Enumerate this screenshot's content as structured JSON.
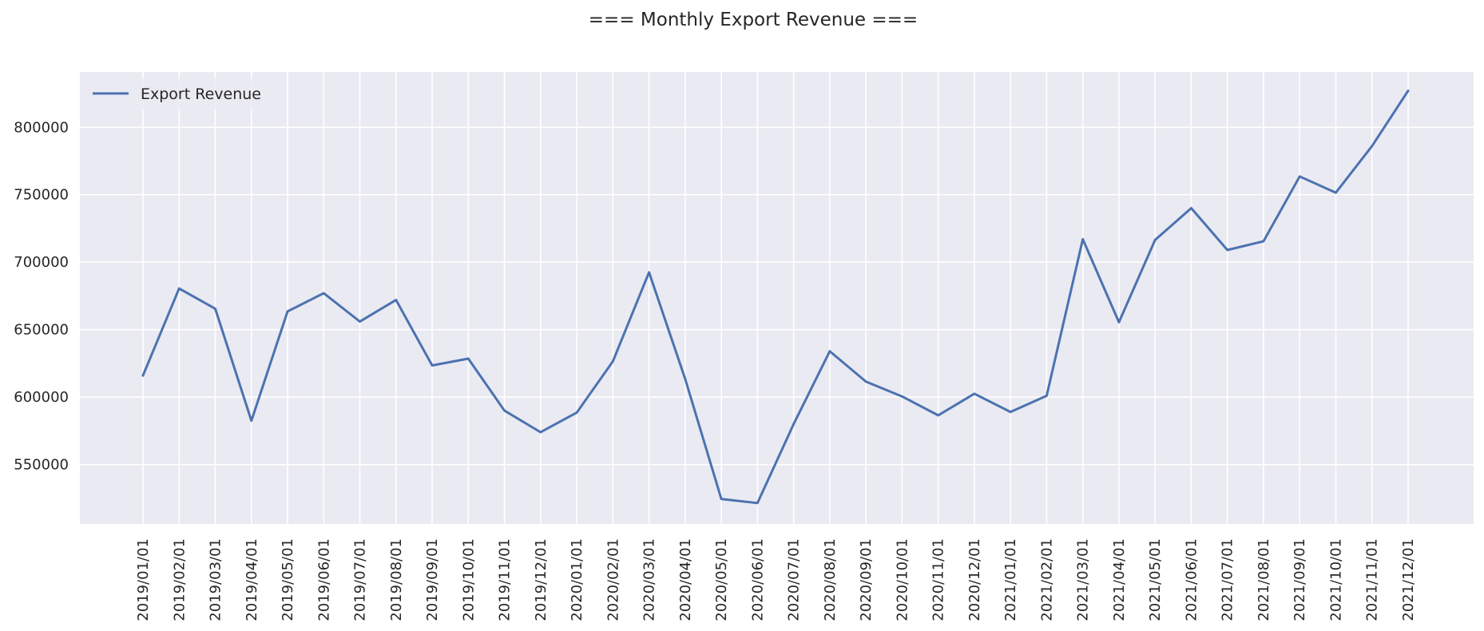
{
  "chart_data": {
    "type": "line",
    "title": "=== Monthly Export Revenue ===",
    "xlabel": "",
    "ylabel": "",
    "x": [
      "2019/01/01",
      "2019/02/01",
      "2019/03/01",
      "2019/04/01",
      "2019/05/01",
      "2019/06/01",
      "2019/07/01",
      "2019/08/01",
      "2019/09/01",
      "2019/10/01",
      "2019/11/01",
      "2019/12/01",
      "2020/01/01",
      "2020/02/01",
      "2020/03/01",
      "2020/04/01",
      "2020/05/01",
      "2020/06/01",
      "2020/07/01",
      "2020/08/01",
      "2020/09/01",
      "2020/10/01",
      "2020/11/01",
      "2020/12/01",
      "2021/01/01",
      "2021/02/01",
      "2021/03/01",
      "2021/04/01",
      "2021/05/01",
      "2021/06/01",
      "2021/07/01",
      "2021/08/01",
      "2021/09/01",
      "2021/10/01",
      "2021/11/01",
      "2021/12/01"
    ],
    "series": [
      {
        "name": "Export Revenue",
        "values": [
          616000,
          680500,
          665500,
          582500,
          663500,
          677000,
          656000,
          672000,
          623500,
          628500,
          590000,
          574000,
          588500,
          626500,
          692500,
          613500,
          524500,
          521500,
          580000,
          634000,
          611500,
          600500,
          586500,
          602500,
          589000,
          601000,
          717000,
          655500,
          716500,
          740000,
          709000,
          715500,
          763500,
          751500,
          786000,
          827000
        ]
      }
    ],
    "yticks": [
      550000,
      600000,
      650000,
      700000,
      750000,
      800000
    ],
    "ylim": [
      506000,
      841000
    ],
    "grid": true,
    "legend_position": "upper-left",
    "colors": {
      "line": "#4c72b0",
      "plot_background": "#eaeaf2",
      "grid": "#ffffff",
      "text": "#262626"
    }
  }
}
